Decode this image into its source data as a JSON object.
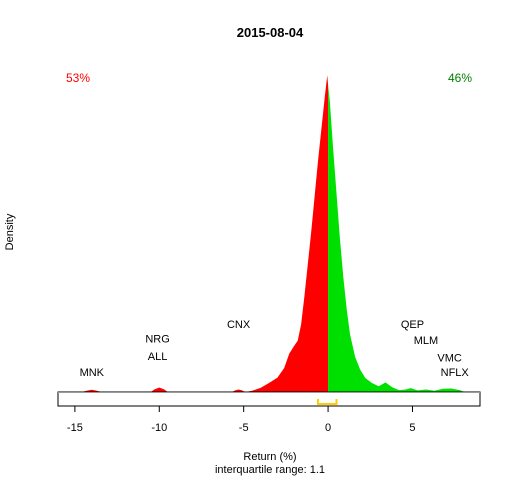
{
  "chart_data": {
    "type": "area",
    "title": "2015-08-04",
    "xlabel": "Return (%)",
    "ylabel": "Density",
    "subtitle": "interquartile range: 1.1",
    "xlim": [
      -16,
      9
    ],
    "ylim": [
      0,
      1.0
    ],
    "xticks": [
      -15,
      -10,
      -5,
      0,
      5
    ],
    "negative_share": "53%",
    "positive_share": "46%",
    "colors": {
      "negative": "#ff0000",
      "positive": "#00e000",
      "iqr": "#ffcc00",
      "neg_text": "#ff0000",
      "pos_text": "#008000"
    },
    "iqr": [
      -0.6,
      0.5
    ],
    "density": [
      [
        -14.6,
        0.0
      ],
      [
        -14.3,
        0.004
      ],
      [
        -14.0,
        0.007
      ],
      [
        -13.7,
        0.004
      ],
      [
        -13.4,
        0.0
      ],
      [
        -10.5,
        0.0
      ],
      [
        -10.3,
        0.008
      ],
      [
        -10.0,
        0.014
      ],
      [
        -9.7,
        0.008
      ],
      [
        -9.5,
        0.0
      ],
      [
        -5.7,
        0.0
      ],
      [
        -5.5,
        0.005
      ],
      [
        -5.3,
        0.008
      ],
      [
        -5.1,
        0.005
      ],
      [
        -4.9,
        0.0
      ],
      [
        -4.5,
        0.004
      ],
      [
        -4.0,
        0.013
      ],
      [
        -3.5,
        0.028
      ],
      [
        -3.0,
        0.045
      ],
      [
        -2.6,
        0.075
      ],
      [
        -2.3,
        0.12
      ],
      [
        -2.0,
        0.145
      ],
      [
        -1.8,
        0.16
      ],
      [
        -1.6,
        0.21
      ],
      [
        -1.4,
        0.3
      ],
      [
        -1.2,
        0.4
      ],
      [
        -1.0,
        0.5
      ],
      [
        -0.8,
        0.61
      ],
      [
        -0.6,
        0.72
      ],
      [
        -0.4,
        0.82
      ],
      [
        -0.2,
        0.92
      ],
      [
        -0.05,
        0.99
      ],
      [
        0.0,
        0.96
      ],
      [
        0.1,
        0.91
      ],
      [
        0.3,
        0.76
      ],
      [
        0.5,
        0.62
      ],
      [
        0.7,
        0.48
      ],
      [
        0.9,
        0.36
      ],
      [
        1.1,
        0.26
      ],
      [
        1.3,
        0.18
      ],
      [
        1.6,
        0.11
      ],
      [
        1.9,
        0.07
      ],
      [
        2.2,
        0.044
      ],
      [
        2.6,
        0.028
      ],
      [
        3.0,
        0.018
      ],
      [
        3.4,
        0.03
      ],
      [
        3.8,
        0.015
      ],
      [
        4.2,
        0.006
      ],
      [
        4.6,
        0.008
      ],
      [
        4.9,
        0.012
      ],
      [
        5.3,
        0.005
      ],
      [
        5.8,
        0.008
      ],
      [
        6.3,
        0.004
      ],
      [
        6.8,
        0.01
      ],
      [
        7.3,
        0.011
      ],
      [
        7.8,
        0.006
      ],
      [
        8.1,
        0.0
      ]
    ],
    "annotations": [
      {
        "text": "MNK",
        "x": -14.0,
        "y": 0.05
      },
      {
        "text": "NRG",
        "x": -10.1,
        "y": 0.155
      },
      {
        "text": "ALL",
        "x": -10.1,
        "y": 0.1
      },
      {
        "text": "CNX",
        "x": -5.3,
        "y": 0.2
      },
      {
        "text": "QEP",
        "x": 5.0,
        "y": 0.2
      },
      {
        "text": "MLM",
        "x": 5.8,
        "y": 0.15
      },
      {
        "text": "VMC",
        "x": 7.2,
        "y": 0.095
      },
      {
        "text": "NFLX",
        "x": 7.5,
        "y": 0.05
      }
    ]
  }
}
